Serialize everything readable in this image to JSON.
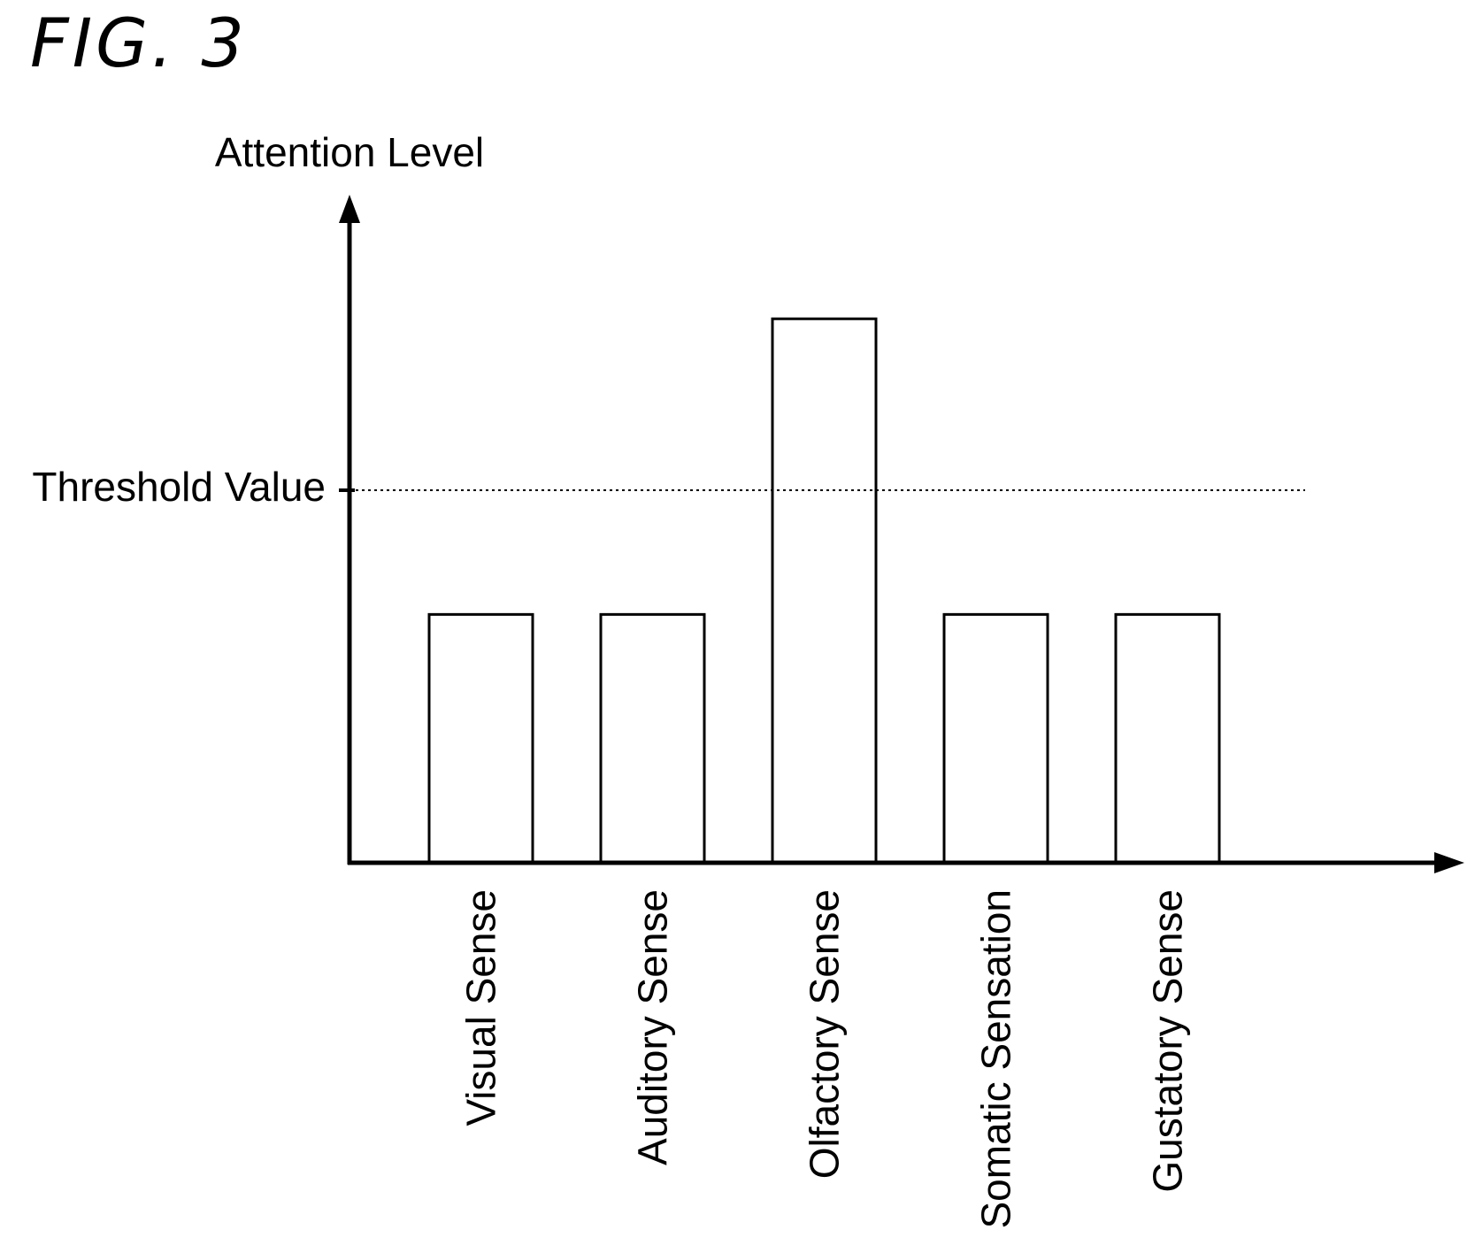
{
  "figure_label": "FIG. 3",
  "chart_data": {
    "type": "bar",
    "categories": [
      "Visual Sense",
      "Auditory Sense",
      "Olfactory Sense",
      "Somatic Sensation",
      "Gustatory Sense"
    ],
    "values": [
      0.42,
      0.42,
      0.92,
      0.42,
      0.42
    ],
    "ylabel": "Attention Level",
    "xlabel": "",
    "ylim": [
      0,
      1.1
    ],
    "threshold": {
      "label": "Threshold Value",
      "value": 0.63
    },
    "colors": {
      "bar_fill": "#ffffff",
      "bar_stroke": "#000000",
      "axis": "#000000"
    },
    "grid": false
  }
}
